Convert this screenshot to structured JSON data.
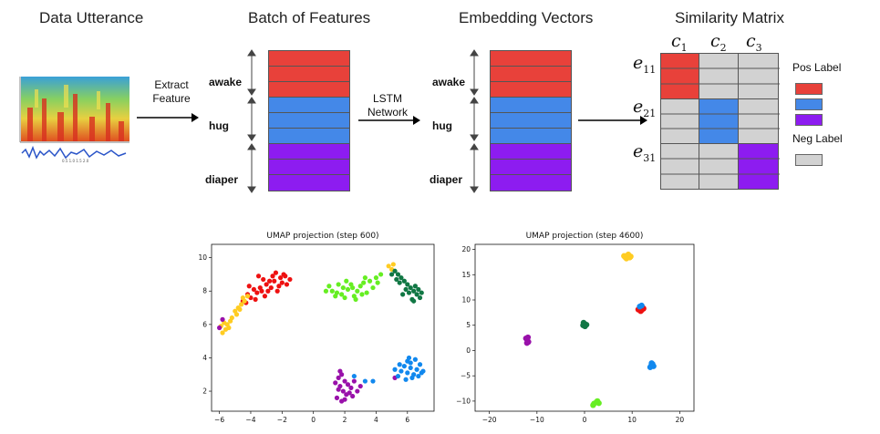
{
  "titles": {
    "utterance": "Data Utterance",
    "batch": "Batch of Features",
    "embeddings": "Embedding Vectors",
    "similarity": "Similarity Matrix"
  },
  "arrows": {
    "extract": "Extract\nFeature",
    "lstm": "LSTM\nNetwork"
  },
  "speakers": [
    "awake",
    "hug",
    "diaper"
  ],
  "colors": {
    "red": "#e8413a",
    "blue": "#4488e8",
    "purple": "#8d1cf0",
    "gray": "#d2d2d2",
    "scatter_red": "#ee1111",
    "scatter_yellow": "#ffcc22",
    "scatter_lightgreen": "#66ee22",
    "scatter_darkgreen": "#117744",
    "scatter_blue": "#1188ee",
    "scatter_purple": "#9911aa"
  },
  "matrix": {
    "col_labels": [
      "c1",
      "c2",
      "c3"
    ],
    "row_labels": [
      "e11",
      "e21",
      "e31"
    ]
  },
  "legend": {
    "pos_label": "Pos Label",
    "neg_label": "Neg Label"
  },
  "chart_data": [
    {
      "type": "scatter",
      "title": "UMAP projection (step 600)",
      "xlim": [
        -6.5,
        7.7
      ],
      "ylim": [
        0.8,
        10.8
      ],
      "xticks": [
        -6,
        -4,
        -2,
        0,
        2,
        4,
        6
      ],
      "yticks": [
        2,
        4,
        6,
        8,
        10
      ],
      "series": [
        {
          "color": "scatter_red",
          "points": [
            [
              -1.5,
              8.7
            ],
            [
              -1.8,
              8.9
            ],
            [
              -2.0,
              8.5
            ],
            [
              -2.2,
              8.3
            ],
            [
              -2.5,
              8.6
            ],
            [
              -2.7,
              8.2
            ],
            [
              -2.9,
              8.0
            ],
            [
              -3.0,
              8.4
            ],
            [
              -3.2,
              8.7
            ],
            [
              -3.4,
              8.2
            ],
            [
              -3.6,
              7.9
            ],
            [
              -3.8,
              8.1
            ],
            [
              -4.0,
              7.6
            ],
            [
              -4.2,
              7.8
            ],
            [
              -3.5,
              8.9
            ],
            [
              -2.4,
              9.1
            ],
            [
              -1.9,
              9.0
            ],
            [
              -2.6,
              8.9
            ],
            [
              -3.1,
              7.7
            ],
            [
              -4.3,
              7.3
            ],
            [
              -1.7,
              8.4
            ],
            [
              -2.8,
              8.6
            ],
            [
              -3.3,
              8.0
            ],
            [
              -4.5,
              7.4
            ],
            [
              -2.1,
              8.8
            ],
            [
              -3.7,
              7.5
            ],
            [
              -4.1,
              8.3
            ],
            [
              -2.3,
              8.0
            ]
          ]
        },
        {
          "color": "scatter_yellow",
          "points": [
            [
              -5.8,
              5.5
            ],
            [
              -5.5,
              6.0
            ],
            [
              -5.2,
              6.4
            ],
            [
              -5.0,
              6.8
            ],
            [
              -4.8,
              7.0
            ],
            [
              -4.6,
              7.2
            ],
            [
              -4.4,
              7.4
            ],
            [
              -5.6,
              5.7
            ],
            [
              -5.3,
              6.2
            ],
            [
              -4.9,
              6.6
            ],
            [
              -5.7,
              6.1
            ],
            [
              -4.5,
              7.6
            ],
            [
              -4.7,
              6.9
            ],
            [
              -5.4,
              5.8
            ],
            [
              -5.9,
              5.9
            ],
            [
              -4.2,
              7.7
            ],
            [
              4.8,
              9.5
            ],
            [
              5.0,
              9.3
            ],
            [
              5.1,
              9.6
            ]
          ]
        },
        {
          "color": "scatter_lightgreen",
          "points": [
            [
              1.0,
              8.3
            ],
            [
              1.2,
              8.0
            ],
            [
              1.5,
              7.9
            ],
            [
              1.8,
              7.8
            ],
            [
              2.0,
              7.6
            ],
            [
              2.2,
              8.1
            ],
            [
              2.4,
              8.4
            ],
            [
              2.6,
              7.7
            ],
            [
              2.8,
              8.0
            ],
            [
              3.0,
              8.3
            ],
            [
              3.2,
              8.5
            ],
            [
              3.4,
              7.9
            ],
            [
              3.6,
              8.6
            ],
            [
              3.8,
              8.2
            ],
            [
              4.0,
              8.8
            ],
            [
              4.3,
              9.0
            ],
            [
              1.6,
              8.4
            ],
            [
              2.1,
              8.6
            ],
            [
              2.7,
              7.5
            ],
            [
              3.1,
              7.8
            ],
            [
              1.4,
              7.7
            ],
            [
              3.3,
              8.8
            ],
            [
              2.5,
              8.2
            ],
            [
              4.1,
              8.5
            ],
            [
              1.9,
              8.2
            ],
            [
              0.8,
              8.0
            ]
          ]
        },
        {
          "color": "scatter_darkgreen",
          "points": [
            [
              5.2,
              9.2
            ],
            [
              5.4,
              9.0
            ],
            [
              5.6,
              8.8
            ],
            [
              5.8,
              8.6
            ],
            [
              6.0,
              8.4
            ],
            [
              6.2,
              8.2
            ],
            [
              6.4,
              8.0
            ],
            [
              6.6,
              7.8
            ],
            [
              6.8,
              7.6
            ],
            [
              6.5,
              8.3
            ],
            [
              6.1,
              7.9
            ],
            [
              5.9,
              8.1
            ],
            [
              5.7,
              7.8
            ],
            [
              6.3,
              7.5
            ],
            [
              6.7,
              8.1
            ],
            [
              5.5,
              8.5
            ],
            [
              5.3,
              8.7
            ],
            [
              6.9,
              7.9
            ],
            [
              6.4,
              7.4
            ],
            [
              5.0,
              9.0
            ]
          ]
        },
        {
          "color": "scatter_purple",
          "points": [
            [
              -5.8,
              6.3
            ],
            [
              -6.0,
              5.8
            ],
            [
              1.6,
              2.8
            ],
            [
              1.8,
              3.0
            ],
            [
              2.0,
              2.6
            ],
            [
              1.7,
              2.3
            ],
            [
              1.9,
              2.0
            ],
            [
              2.1,
              1.8
            ],
            [
              1.5,
              1.6
            ],
            [
              1.8,
              1.4
            ],
            [
              2.2,
              2.4
            ],
            [
              2.4,
              2.2
            ],
            [
              2.6,
              2.6
            ],
            [
              2.8,
              2.0
            ],
            [
              3.0,
              2.3
            ],
            [
              1.6,
              2.1
            ],
            [
              2.0,
              1.5
            ],
            [
              1.4,
              2.5
            ],
            [
              2.3,
              1.9
            ],
            [
              1.7,
              3.2
            ],
            [
              2.5,
              1.7
            ],
            [
              5.2,
              2.8
            ]
          ]
        },
        {
          "color": "scatter_blue",
          "points": [
            [
              5.4,
              2.9
            ],
            [
              5.6,
              3.2
            ],
            [
              5.8,
              3.5
            ],
            [
              6.0,
              3.8
            ],
            [
              6.2,
              3.4
            ],
            [
              6.4,
              3.0
            ],
            [
              6.6,
              3.3
            ],
            [
              6.8,
              3.6
            ],
            [
              7.0,
              3.2
            ],
            [
              6.3,
              2.8
            ],
            [
              5.9,
              2.7
            ],
            [
              6.1,
              4.0
            ],
            [
              6.5,
              3.9
            ],
            [
              6.7,
              2.9
            ],
            [
              5.5,
              3.6
            ],
            [
              6.9,
              3.1
            ],
            [
              6.0,
              3.1
            ],
            [
              3.3,
              2.6
            ],
            [
              3.8,
              2.6
            ],
            [
              2.6,
              2.9
            ],
            [
              5.2,
              3.3
            ],
            [
              6.2,
              3.7
            ]
          ]
        }
      ]
    },
    {
      "type": "scatter",
      "title": "UMAP projection (step 4600)",
      "xlim": [
        -23,
        23
      ],
      "ylim": [
        -12,
        21
      ],
      "xticks": [
        -20,
        -10,
        0,
        10,
        20
      ],
      "yticks": [
        -10,
        -5,
        0,
        5,
        10,
        15,
        20
      ],
      "series": [
        {
          "color": "scatter_yellow",
          "points": [
            [
              8.5,
              18.5
            ],
            [
              9.0,
              18.8
            ],
            [
              9.5,
              18.4
            ],
            [
              8.8,
              18.2
            ],
            [
              9.2,
              19.0
            ],
            [
              8.3,
              18.7
            ],
            [
              9.7,
              18.6
            ]
          ]
        },
        {
          "color": "scatter_red",
          "points": [
            [
              11.5,
              8.2
            ],
            [
              12.0,
              8.0
            ],
            [
              12.4,
              8.3
            ],
            [
              11.8,
              7.8
            ],
            [
              12.2,
              8.5
            ],
            [
              11.3,
              8.1
            ]
          ]
        },
        {
          "color": "scatter_blue",
          "points": [
            [
              12.0,
              8.9
            ],
            [
              11.6,
              8.7
            ],
            [
              14.0,
              -3.0
            ],
            [
              14.3,
              -2.7
            ],
            [
              13.8,
              -3.3
            ],
            [
              14.5,
              -3.1
            ],
            [
              14.1,
              -2.5
            ]
          ]
        },
        {
          "color": "scatter_darkgreen",
          "points": [
            [
              0.0,
              5.3
            ],
            [
              -0.3,
              5.0
            ],
            [
              0.4,
              5.1
            ],
            [
              0.1,
              4.8
            ],
            [
              -0.2,
              5.5
            ]
          ]
        },
        {
          "color": "scatter_purple",
          "points": [
            [
              -12.0,
              2.0
            ],
            [
              -12.3,
              2.4
            ],
            [
              -11.8,
              1.7
            ],
            [
              -12.1,
              1.5
            ],
            [
              -11.9,
              2.6
            ]
          ]
        },
        {
          "color": "scatter_lightgreen",
          "points": [
            [
              2.0,
              -10.5
            ],
            [
              2.5,
              -10.2
            ],
            [
              3.0,
              -10.4
            ],
            [
              1.8,
              -10.8
            ],
            [
              2.7,
              -10.0
            ]
          ]
        }
      ]
    }
  ]
}
